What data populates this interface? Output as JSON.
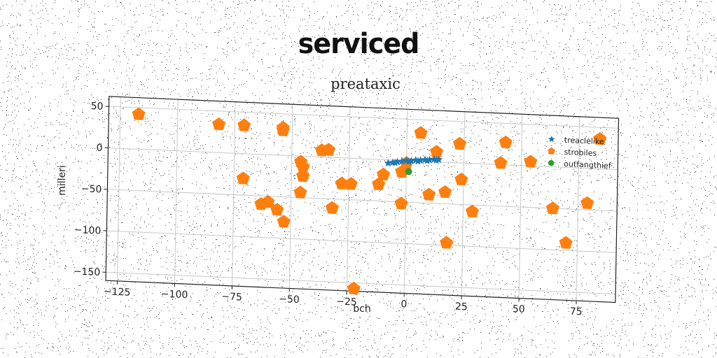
{
  "header": {
    "title": "serviced"
  },
  "chart_data": {
    "type": "scatter",
    "title": "preataxic",
    "xlabel": "bch",
    "ylabel": "milleri",
    "xlim": [
      -130,
      92
    ],
    "ylim": [
      -160,
      62
    ],
    "xticks": [
      -125,
      -100,
      -75,
      -50,
      -25,
      0,
      25,
      50,
      75
    ],
    "xtick_labels": [
      "−125",
      "−100",
      "−75",
      "−50",
      "−25",
      "0",
      "25",
      "50",
      "75"
    ],
    "yticks": [
      50,
      0,
      -50,
      -100,
      -150
    ],
    "ytick_labels": [
      "50",
      "0",
      "−50",
      "−100",
      "−150"
    ],
    "grid": true,
    "legend": "top-right",
    "series": [
      {
        "name": "treaclelike",
        "marker": "star",
        "color": "#1f77b4",
        "points": [
          [
            -8,
            -4
          ],
          [
            -6,
            -3
          ],
          [
            -4,
            -2
          ],
          [
            -2,
            -1
          ],
          [
            0,
            0
          ],
          [
            2,
            0
          ],
          [
            4,
            1
          ],
          [
            6,
            1
          ],
          [
            8,
            2
          ],
          [
            10,
            2
          ],
          [
            12,
            3
          ],
          [
            14,
            3
          ],
          [
            -5,
            -3
          ],
          [
            1,
            -1
          ],
          [
            5,
            0
          ],
          [
            9,
            1
          ],
          [
            13,
            2
          ]
        ]
      },
      {
        "name": "strobiles",
        "marker": "pentagon",
        "color": "#ff7f0e",
        "points": [
          [
            -117,
            42
          ],
          [
            -82,
            34
          ],
          [
            -71,
            34
          ],
          [
            -54,
            33
          ],
          [
            -54,
            30
          ],
          [
            -37,
            8
          ],
          [
            -34,
            9
          ],
          [
            -46,
            -7
          ],
          [
            -45,
            -13
          ],
          [
            -45,
            -24
          ],
          [
            -46,
            -44
          ],
          [
            -71,
            -30
          ],
          [
            -63,
            -60
          ],
          [
            -60,
            -57
          ],
          [
            -56,
            -66
          ],
          [
            -53,
            -80
          ],
          [
            -32,
            -61
          ],
          [
            -28,
            -31
          ],
          [
            -24,
            -31
          ],
          [
            -12,
            -30
          ],
          [
            -10,
            -18
          ],
          [
            -2,
            -52
          ],
          [
            0,
            -3
          ],
          [
            -2,
            -14
          ],
          [
            6,
            34
          ],
          [
            13,
            12
          ],
          [
            10,
            -40
          ],
          [
            17,
            -36
          ],
          [
            23,
            23
          ],
          [
            24,
            -20
          ],
          [
            18,
            -97
          ],
          [
            29,
            -58
          ],
          [
            41,
            2
          ],
          [
            43,
            27
          ],
          [
            54,
            5
          ],
          [
            64,
            -50
          ],
          [
            70,
            -91
          ],
          [
            79,
            -42
          ],
          [
            84,
            36
          ],
          [
            -22,
            -157
          ]
        ]
      },
      {
        "name": "outfangthief",
        "marker": "circle",
        "color": "#2ca02c",
        "points": [
          [
            1,
            -13
          ]
        ]
      }
    ]
  }
}
